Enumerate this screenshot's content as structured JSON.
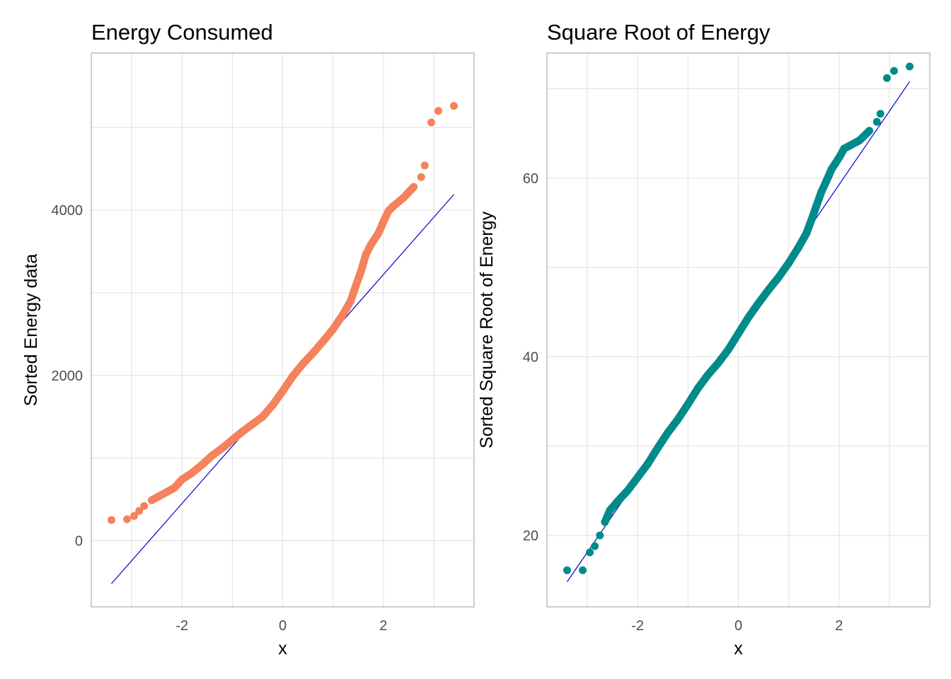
{
  "chart_data": [
    {
      "type": "scatter",
      "title": "Energy Consumed",
      "xlabel": "x",
      "ylabel": "Sorted Energy data",
      "xlim": [
        -3.8,
        3.8
      ],
      "ylim": [
        -800,
        5900
      ],
      "x_ticks": [
        -2,
        0,
        2
      ],
      "x_tick_labels": [
        "-2",
        "0",
        "2"
      ],
      "y_ticks": [
        0,
        2000,
        4000
      ],
      "y_tick_labels": [
        "0",
        "2000",
        "4000"
      ],
      "grid": true,
      "legend": "none",
      "point_color": "#F4825C",
      "line_color": "#0000CD",
      "reference_line": {
        "x": [
          -3.4,
          3.4
        ],
        "y": [
          -520,
          4190
        ]
      },
      "points": [
        [
          -3.4,
          250
        ],
        [
          -3.09,
          260
        ],
        [
          -2.95,
          300
        ],
        [
          -2.85,
          360
        ],
        [
          -2.75,
          420
        ],
        [
          -2.6,
          490
        ],
        [
          -2.45,
          540
        ],
        [
          -2.3,
          590
        ],
        [
          -2.15,
          640
        ],
        [
          -2.0,
          740
        ],
        [
          -1.8,
          820
        ],
        [
          -1.6,
          920
        ],
        [
          -1.4,
          1030
        ],
        [
          -1.2,
          1120
        ],
        [
          -1.0,
          1220
        ],
        [
          -0.8,
          1320
        ],
        [
          -0.6,
          1410
        ],
        [
          -0.4,
          1500
        ],
        [
          -0.2,
          1640
        ],
        [
          0.0,
          1810
        ],
        [
          0.2,
          1990
        ],
        [
          0.4,
          2140
        ],
        [
          0.6,
          2270
        ],
        [
          0.8,
          2410
        ],
        [
          1.0,
          2560
        ],
        [
          1.2,
          2740
        ],
        [
          1.35,
          2900
        ],
        [
          1.45,
          3080
        ],
        [
          1.55,
          3250
        ],
        [
          1.65,
          3460
        ],
        [
          1.75,
          3580
        ],
        [
          1.9,
          3720
        ],
        [
          2.0,
          3860
        ],
        [
          2.1,
          3990
        ],
        [
          2.2,
          4050
        ],
        [
          2.4,
          4150
        ],
        [
          2.6,
          4280
        ],
        [
          2.75,
          4400
        ],
        [
          2.82,
          4540
        ],
        [
          2.95,
          5060
        ],
        [
          3.09,
          5200
        ],
        [
          3.4,
          5260
        ]
      ]
    },
    {
      "type": "scatter",
      "title": "Square Root of Energy",
      "xlabel": "x",
      "ylabel": "Sorted Square Root of Energy",
      "xlim": [
        -3.8,
        3.8
      ],
      "ylim": [
        12,
        74
      ],
      "x_ticks": [
        -2,
        0,
        2
      ],
      "x_tick_labels": [
        "-2",
        "0",
        "2"
      ],
      "y_ticks": [
        20,
        40,
        60
      ],
      "y_tick_labels": [
        "20",
        "40",
        "60"
      ],
      "grid": true,
      "legend": "none",
      "point_color": "#008B8B",
      "line_color": "#0000CD",
      "reference_line": {
        "x": [
          -3.4,
          3.4
        ],
        "y": [
          14.8,
          70.8
        ]
      },
      "points": [
        [
          -3.4,
          16.1
        ],
        [
          -3.09,
          16.1
        ],
        [
          -2.95,
          18.1
        ],
        [
          -2.85,
          18.8
        ],
        [
          -2.75,
          20.0
        ],
        [
          -2.65,
          21.5
        ],
        [
          -2.55,
          22.8
        ],
        [
          -2.4,
          23.8
        ],
        [
          -2.2,
          25.0
        ],
        [
          -2.0,
          26.5
        ],
        [
          -1.8,
          28.0
        ],
        [
          -1.6,
          29.8
        ],
        [
          -1.4,
          31.5
        ],
        [
          -1.2,
          33.0
        ],
        [
          -1.0,
          34.7
        ],
        [
          -0.8,
          36.5
        ],
        [
          -0.6,
          38.0
        ],
        [
          -0.4,
          39.3
        ],
        [
          -0.2,
          40.8
        ],
        [
          0.0,
          42.6
        ],
        [
          0.2,
          44.4
        ],
        [
          0.4,
          46.0
        ],
        [
          0.6,
          47.5
        ],
        [
          0.8,
          48.9
        ],
        [
          1.0,
          50.5
        ],
        [
          1.2,
          52.3
        ],
        [
          1.35,
          53.8
        ],
        [
          1.45,
          55.3
        ],
        [
          1.55,
          56.9
        ],
        [
          1.65,
          58.5
        ],
        [
          1.75,
          59.7
        ],
        [
          1.85,
          61.0
        ],
        [
          2.0,
          62.3
        ],
        [
          2.1,
          63.3
        ],
        [
          2.2,
          63.6
        ],
        [
          2.4,
          64.2
        ],
        [
          2.6,
          65.3
        ],
        [
          2.75,
          66.3
        ],
        [
          2.82,
          67.2
        ],
        [
          2.95,
          71.2
        ],
        [
          3.09,
          72.0
        ],
        [
          3.4,
          72.5
        ]
      ]
    }
  ]
}
